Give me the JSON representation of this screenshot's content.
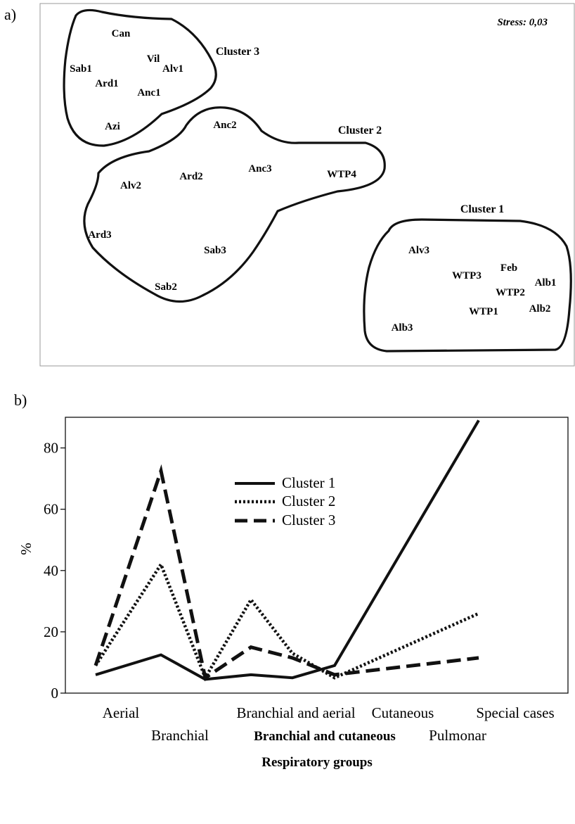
{
  "chart_data": [
    {
      "type": "scatter",
      "panel_label": "a)",
      "stress_label": "Stress: 0,03",
      "clusters": [
        {
          "name": "Cluster 1",
          "sites": [
            "Alv3",
            "WTP3",
            "Feb",
            "WTP2",
            "Alb1",
            "WTP1",
            "Alb2",
            "Alb3"
          ]
        },
        {
          "name": "Cluster 2",
          "sites": [
            "Anc2",
            "Anc3",
            "WTP4",
            "Alv2",
            "Ard2",
            "Ard3",
            "Sab3",
            "Sab2"
          ]
        },
        {
          "name": "Cluster 3",
          "sites": [
            "Can",
            "Vil",
            "Alv1",
            "Sab1",
            "Ard1",
            "Anc1",
            "Azi"
          ]
        }
      ]
    },
    {
      "type": "line",
      "panel_label": "b)",
      "categories": [
        "Aerial",
        "Branchial",
        "Branchial and aerial",
        "Branchial and cutaneous",
        "Cutaneous",
        "Pulmonar",
        "Special cases"
      ],
      "series": [
        {
          "name": "Cluster  1",
          "style": "solid",
          "values": [
            6,
            12.5,
            4.5,
            6,
            5,
            9,
            89
          ]
        },
        {
          "name": "Cluster  2",
          "style": "dotted",
          "values": [
            9,
            42,
            5,
            30.5,
            13,
            5,
            26
          ]
        },
        {
          "name": "Cluster  3",
          "style": "dashed",
          "values": [
            9,
            72.5,
            5,
            15,
            11.5,
            6,
            11.5
          ]
        }
      ],
      "xlabel": "Respiratory groups",
      "ylabel": "%",
      "ylim": [
        0,
        90
      ],
      "yticks": [
        0,
        20,
        40,
        60,
        80
      ],
      "legend_position": "top-center",
      "line_color": "#111111"
    }
  ]
}
